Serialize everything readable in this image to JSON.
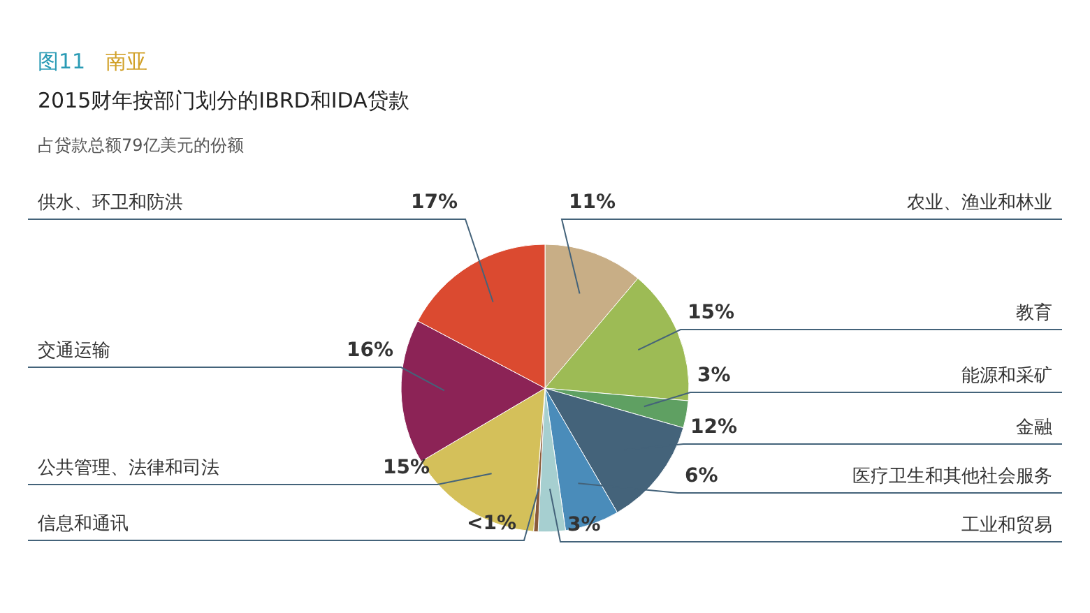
{
  "chart_data": {
    "type": "pie",
    "title": "图11 南亚",
    "subtitle": "2015财年按部门划分的IBRD和IDA贷款",
    "annotations": [
      "占贷款总额79亿美元的份额"
    ],
    "categories": [
      "农业、渔业和林业",
      "教育",
      "能源和采矿",
      "金融",
      "医疗卫生和其他社会服务",
      "工业和贸易",
      "信息和通讯",
      "公共管理、法律和司法",
      "交通运输",
      "供水、环卫和防洪"
    ],
    "values": [
      11,
      15,
      3,
      12,
      6,
      3,
      0.5,
      15,
      16,
      17
    ],
    "value_labels": [
      "11%",
      "15%",
      "3%",
      "12%",
      "6%",
      "3%",
      "<1%",
      "15%",
      "16%",
      "17%"
    ],
    "colors": [
      "#c8ae86",
      "#9dbb55",
      "#5fa062",
      "#44637a",
      "#4a8cba",
      "#a6cfd0",
      "#8a5a3a",
      "#d4c05a",
      "#8c2356",
      "#db4a30"
    ],
    "legend": false
  }
}
